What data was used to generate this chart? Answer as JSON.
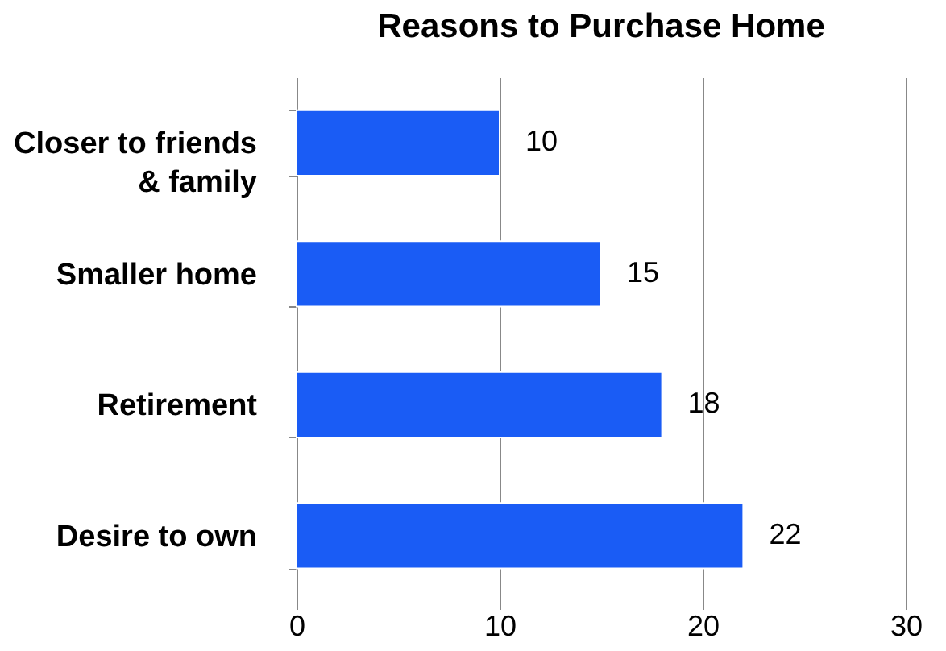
{
  "chart_data": {
    "type": "bar",
    "orientation": "horizontal",
    "title": "Reasons to Purchase Home",
    "categories": [
      "Closer to friends & family",
      "Smaller home",
      "Retirement",
      "Desire to own"
    ],
    "values": [
      10,
      15,
      18,
      22
    ],
    "color": "#1a5cf5",
    "xlim": [
      0,
      30
    ],
    "xticks": [
      0,
      10,
      20,
      30
    ],
    "grid": "x",
    "data_labels": true
  }
}
